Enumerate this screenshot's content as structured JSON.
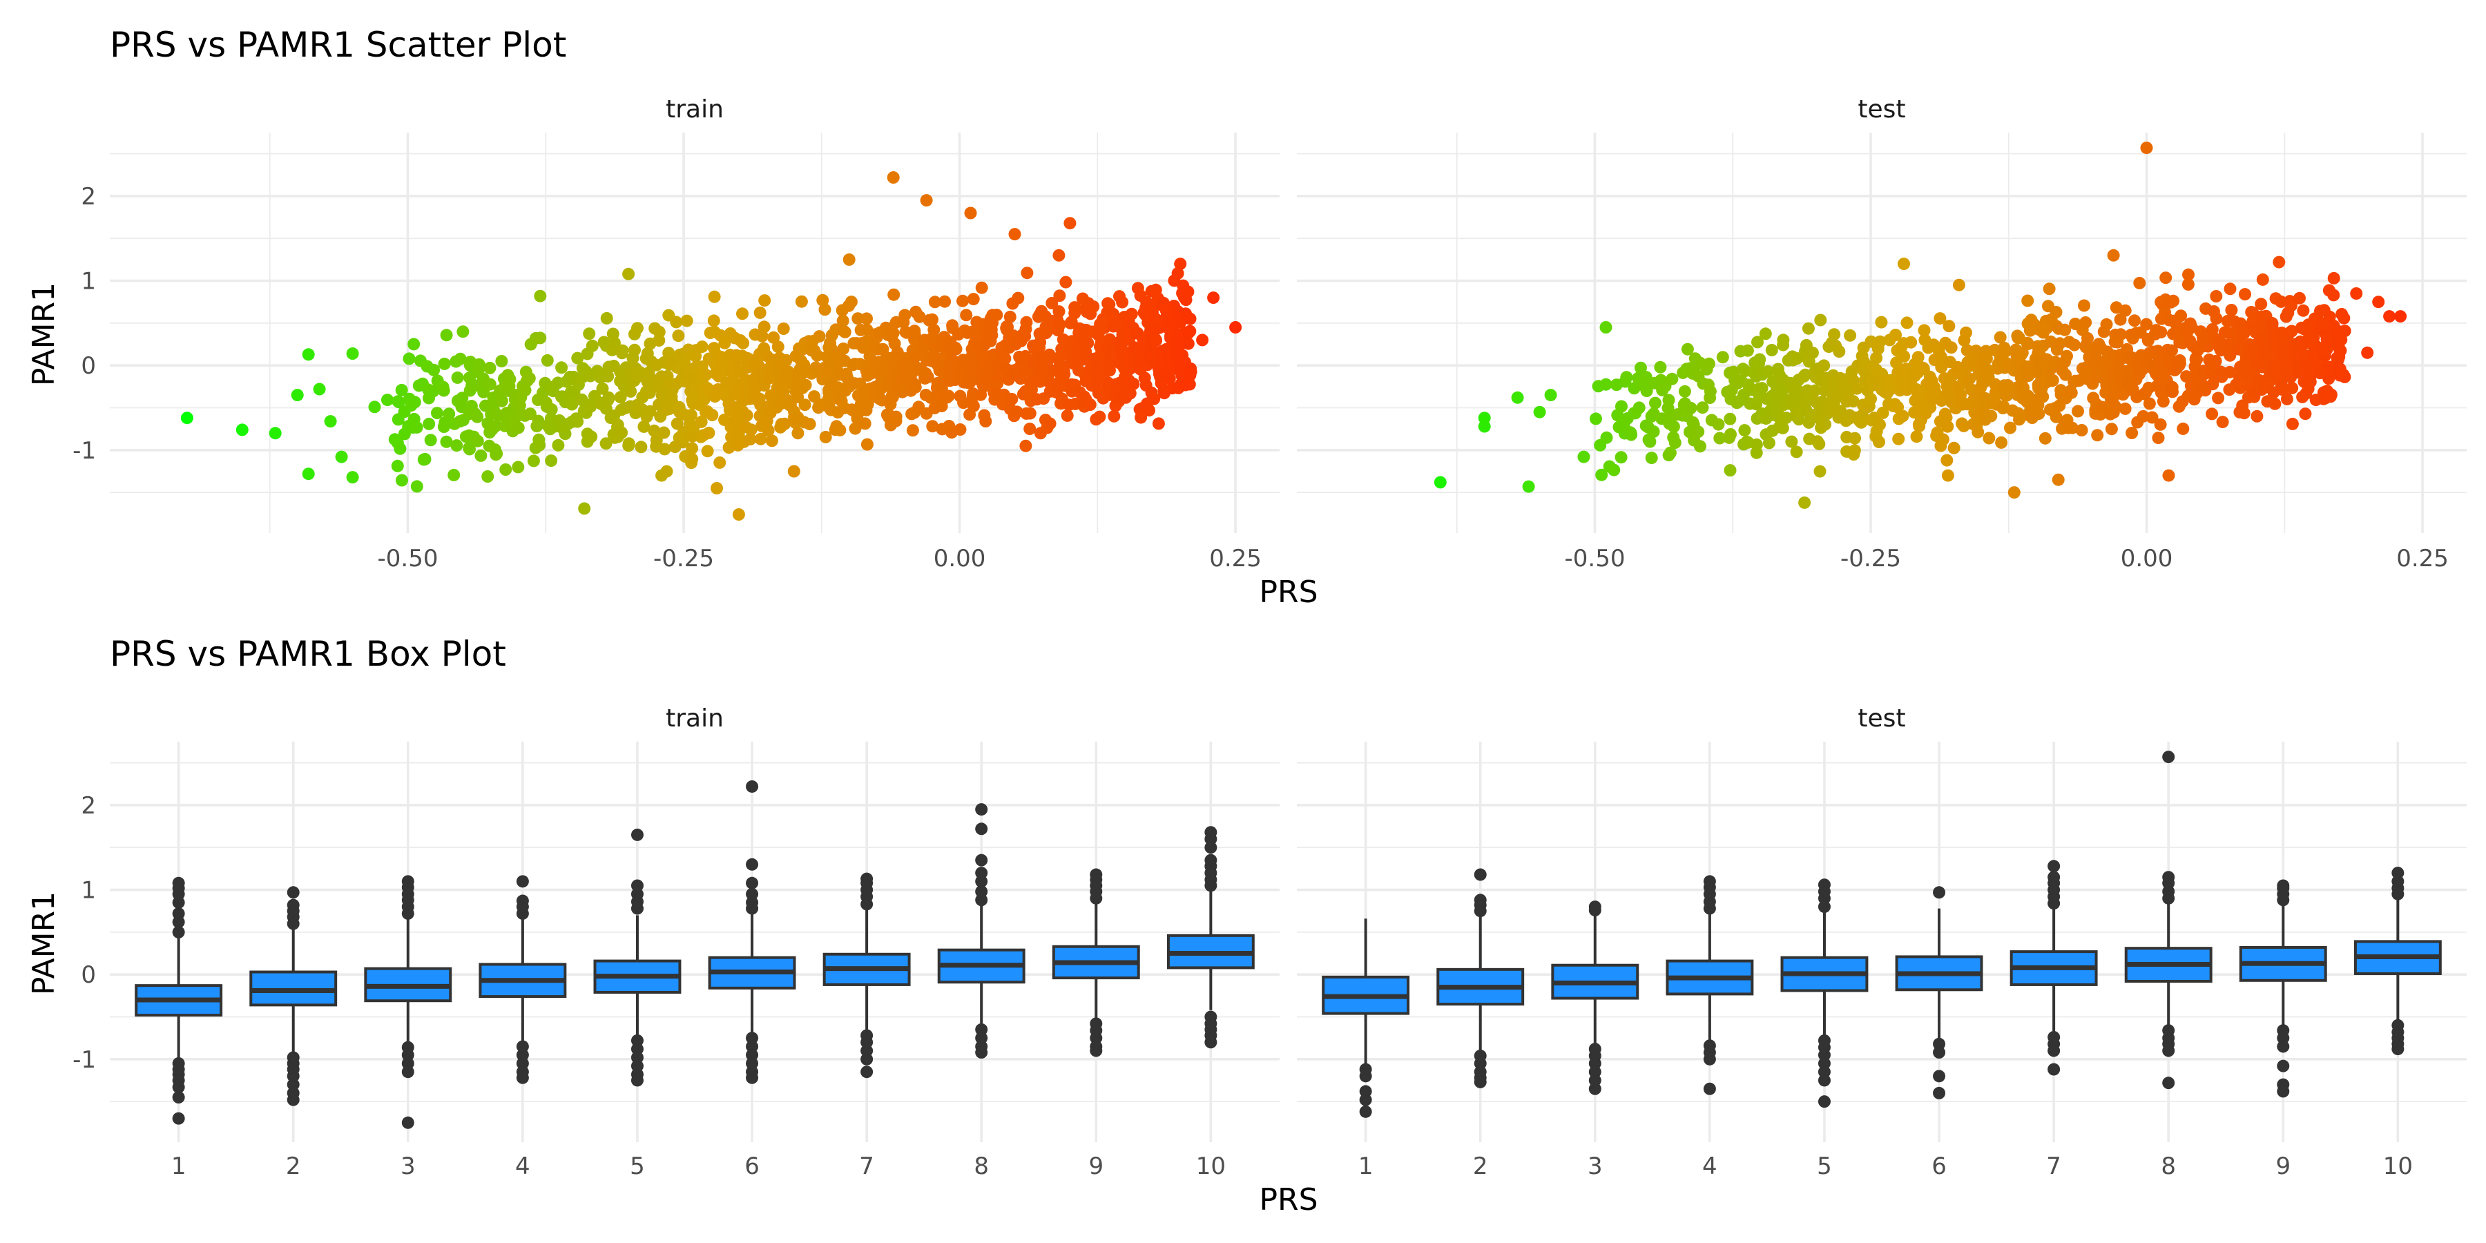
{
  "plots": [
    {
      "title": "PRS vs PAMR1 Scatter Plot",
      "xlabel": "PRS",
      "ylabel": "PAMR1"
    },
    {
      "title": "PRS vs PAMR1 Box Plot",
      "xlabel": "PRS",
      "ylabel": "PAMR1"
    }
  ],
  "colors": {
    "gradient_low": "#00ff00",
    "gradient_mid": "#d6a200",
    "gradient_high": "#ff2a00",
    "box_fill": "#1e90ff",
    "box_line": "#333333",
    "outlier": "#333333",
    "grid": "#ebebeb"
  },
  "chart_data": [
    {
      "type": "scatter",
      "title": "PRS vs PAMR1 Scatter Plot",
      "xlabel": "PRS",
      "ylabel": "PAMR1",
      "facets": [
        "train",
        "test"
      ],
      "xlim": [
        -0.77,
        0.29
      ],
      "ylim": [
        -1.98,
        2.75
      ],
      "xticks": [
        -0.5,
        -0.25,
        0.0,
        0.25
      ],
      "xtick_labels": [
        "-0.50",
        "-0.25",
        "0.00",
        "0.25"
      ],
      "yticks": [
        -1,
        0,
        1,
        2
      ],
      "ytick_labels": [
        "-1",
        "0",
        "1",
        "2"
      ],
      "color_scale": {
        "low": "#00ff00",
        "high": "#ff2a00",
        "domain": [
          -0.7,
          0.25
        ]
      },
      "trend": {
        "slope": 1.2,
        "intercept": 0.02
      },
      "grid": true,
      "legend": "none",
      "series": [
        {
          "name": "train",
          "points": [
            [
              -0.7,
              -0.62
            ],
            [
              -0.65,
              -0.76
            ],
            [
              -0.62,
              -0.8
            ],
            [
              -0.6,
              -0.35
            ],
            [
              -0.59,
              -1.28
            ],
            [
              -0.59,
              0.13
            ],
            [
              -0.58,
              -0.28
            ],
            [
              -0.57,
              -0.66
            ],
            [
              -0.55,
              -1.32
            ],
            [
              -0.55,
              0.14
            ],
            [
              -0.56,
              -1.08
            ],
            [
              -0.53,
              -0.49
            ],
            [
              -0.38,
              0.82
            ],
            [
              -0.3,
              1.08
            ],
            [
              -0.34,
              -1.69
            ],
            [
              -0.2,
              -1.76
            ],
            [
              -0.22,
              -1.45
            ],
            [
              -0.27,
              -1.3
            ],
            [
              -0.1,
              1.25
            ],
            [
              -0.06,
              2.22
            ],
            [
              -0.03,
              1.95
            ],
            [
              0.01,
              1.8
            ],
            [
              0.05,
              1.55
            ],
            [
              0.1,
              1.68
            ],
            [
              0.09,
              1.3
            ],
            [
              0.2,
              1.2
            ],
            [
              0.23,
              0.8
            ],
            [
              0.25,
              0.45
            ],
            [
              0.22,
              0.3
            ],
            [
              0.17,
              -0.45
            ],
            [
              0.14,
              -0.6
            ],
            [
              -0.45,
              0.4
            ],
            [
              -0.4,
              -1.2
            ],
            [
              -0.15,
              -1.25
            ],
            [
              0.06,
              -0.95
            ]
          ],
          "cloud": {
            "x_range": [
              -0.52,
              0.21
            ],
            "n": 1400,
            "spread": 0.36
          }
        },
        {
          "name": "test",
          "points": [
            [
              -0.64,
              -1.38
            ],
            [
              -0.6,
              -0.62
            ],
            [
              -0.6,
              -0.72
            ],
            [
              -0.56,
              -1.43
            ],
            [
              -0.57,
              -0.38
            ],
            [
              -0.55,
              -0.55
            ],
            [
              -0.54,
              -0.35
            ],
            [
              -0.51,
              -1.08
            ],
            [
              -0.31,
              -1.62
            ],
            [
              -0.22,
              1.2
            ],
            [
              -0.17,
              0.95
            ],
            [
              0.0,
              2.57
            ],
            [
              -0.03,
              1.3
            ],
            [
              0.12,
              1.22
            ],
            [
              0.19,
              0.85
            ],
            [
              0.21,
              0.75
            ],
            [
              0.22,
              0.58
            ],
            [
              0.23,
              0.58
            ],
            [
              0.2,
              0.15
            ],
            [
              0.1,
              -0.6
            ],
            [
              0.02,
              -1.3
            ],
            [
              -0.12,
              -1.5
            ],
            [
              -0.08,
              -1.35
            ],
            [
              -0.18,
              -1.3
            ],
            [
              -0.49,
              0.45
            ],
            [
              0.17,
              -0.05
            ],
            [
              -0.45,
              -0.9
            ]
          ],
          "cloud": {
            "x_range": [
              -0.5,
              0.18
            ],
            "n": 1150,
            "spread": 0.35
          }
        }
      ]
    },
    {
      "type": "box",
      "title": "PRS vs PAMR1 Box Plot",
      "xlabel": "PRS",
      "ylabel": "PAMR1",
      "facets": [
        "train",
        "test"
      ],
      "categories": [
        "1",
        "2",
        "3",
        "4",
        "5",
        "6",
        "7",
        "8",
        "9",
        "10"
      ],
      "ylim": [
        -1.98,
        2.75
      ],
      "yticks": [
        -1,
        0,
        1,
        2
      ],
      "ytick_labels": [
        "-1",
        "0",
        "1",
        "2"
      ],
      "grid": true,
      "legend": "none",
      "series": [
        {
          "name": "train",
          "boxes": [
            {
              "whisker_low": -1.0,
              "q1": -0.48,
              "median": -0.3,
              "q3": -0.13,
              "whisker_high": 0.44,
              "outliers": [
                -1.05,
                -1.12,
                -1.18,
                -1.25,
                -1.33,
                -1.45,
                -1.7,
                0.5,
                0.62,
                0.72,
                0.85,
                0.95,
                1.02,
                1.08
              ]
            },
            {
              "whisker_low": -0.92,
              "q1": -0.36,
              "median": -0.19,
              "q3": 0.03,
              "whisker_high": 0.54,
              "outliers": [
                -0.98,
                -1.05,
                -1.12,
                -1.2,
                -1.3,
                -1.4,
                -1.48,
                0.6,
                0.68,
                0.75,
                0.82,
                0.97
              ]
            },
            {
              "whisker_low": -0.8,
              "q1": -0.31,
              "median": -0.14,
              "q3": 0.07,
              "whisker_high": 0.65,
              "outliers": [
                -0.86,
                -0.95,
                -1.05,
                -1.15,
                -1.75,
                0.72,
                0.8,
                0.88,
                0.95,
                1.03,
                1.1
              ]
            },
            {
              "whisker_low": -0.78,
              "q1": -0.26,
              "median": -0.07,
              "q3": 0.12,
              "whisker_high": 0.66,
              "outliers": [
                -0.85,
                -0.95,
                -1.05,
                -1.15,
                -1.22,
                0.72,
                0.8,
                0.87,
                1.1
              ]
            },
            {
              "whisker_low": -0.72,
              "q1": -0.21,
              "median": -0.02,
              "q3": 0.16,
              "whisker_high": 0.7,
              "outliers": [
                -0.78,
                -0.88,
                -0.98,
                -1.08,
                -1.18,
                -1.25,
                0.78,
                0.86,
                0.95,
                1.05,
                1.65
              ]
            },
            {
              "whisker_low": -0.7,
              "q1": -0.16,
              "median": 0.03,
              "q3": 0.2,
              "whisker_high": 0.72,
              "outliers": [
                -0.75,
                -0.85,
                -0.95,
                -1.05,
                -1.15,
                -1.22,
                0.78,
                0.85,
                0.95,
                1.08,
                1.3,
                2.22
              ]
            },
            {
              "whisker_low": -0.65,
              "q1": -0.12,
              "median": 0.07,
              "q3": 0.24,
              "whisker_high": 0.77,
              "outliers": [
                -0.72,
                -0.8,
                -0.9,
                -1.0,
                -1.15,
                0.83,
                0.92,
                1.0,
                1.08,
                1.13
              ]
            },
            {
              "whisker_low": -0.58,
              "q1": -0.09,
              "median": 0.11,
              "q3": 0.29,
              "whisker_high": 0.82,
              "outliers": [
                -0.65,
                -0.75,
                -0.85,
                -0.92,
                0.88,
                0.98,
                1.1,
                1.2,
                1.35,
                1.72,
                1.95
              ]
            },
            {
              "whisker_low": -0.52,
              "q1": -0.04,
              "median": 0.14,
              "q3": 0.33,
              "whisker_high": 0.84,
              "outliers": [
                -0.58,
                -0.66,
                -0.75,
                -0.85,
                -0.9,
                0.9,
                0.98,
                1.05,
                1.12,
                1.18
              ]
            },
            {
              "whisker_low": -0.42,
              "q1": 0.08,
              "median": 0.25,
              "q3": 0.46,
              "whisker_high": 1.0,
              "outliers": [
                -0.5,
                -0.58,
                -0.65,
                -0.72,
                -0.8,
                1.05,
                1.12,
                1.2,
                1.28,
                1.35,
                1.5,
                1.6,
                1.68
              ]
            }
          ]
        },
        {
          "name": "test",
          "boxes": [
            {
              "whisker_low": -1.05,
              "q1": -0.46,
              "median": -0.26,
              "q3": -0.03,
              "whisker_high": 0.66,
              "outliers": [
                -1.12,
                -1.2,
                -1.38,
                -1.48,
                -1.62
              ]
            },
            {
              "whisker_low": -0.9,
              "q1": -0.35,
              "median": -0.15,
              "q3": 0.06,
              "whisker_high": 0.68,
              "outliers": [
                -0.96,
                -1.05,
                -1.15,
                -1.22,
                -1.27,
                0.75,
                0.82,
                0.88,
                1.18
              ]
            },
            {
              "whisker_low": -0.82,
              "q1": -0.28,
              "median": -0.1,
              "q3": 0.11,
              "whisker_high": 0.7,
              "outliers": [
                -0.88,
                -0.96,
                -1.05,
                -1.15,
                -1.25,
                -1.35,
                0.76,
                0.8
              ]
            },
            {
              "whisker_low": -0.78,
              "q1": -0.23,
              "median": -0.04,
              "q3": 0.16,
              "whisker_high": 0.72,
              "outliers": [
                -0.84,
                -0.92,
                -1.0,
                -1.35,
                0.78,
                0.86,
                0.95,
                1.03,
                1.1
              ]
            },
            {
              "whisker_low": -0.72,
              "q1": -0.19,
              "median": 0.01,
              "q3": 0.2,
              "whisker_high": 0.74,
              "outliers": [
                -0.78,
                -0.86,
                -0.95,
                -1.05,
                -1.15,
                -1.25,
                -1.5,
                0.8,
                0.9,
                0.98,
                1.06
              ]
            },
            {
              "whisker_low": -0.75,
              "q1": -0.18,
              "median": 0.01,
              "q3": 0.21,
              "whisker_high": 0.78,
              "outliers": [
                -0.82,
                -0.92,
                -1.2,
                -1.4,
                0.97
              ]
            },
            {
              "whisker_low": -0.68,
              "q1": -0.12,
              "median": 0.08,
              "q3": 0.27,
              "whisker_high": 0.78,
              "outliers": [
                -0.74,
                -0.82,
                -0.9,
                -1.12,
                0.84,
                0.92,
                1.0,
                1.08,
                1.15,
                1.28
              ]
            },
            {
              "whisker_low": -0.6,
              "q1": -0.08,
              "median": 0.12,
              "q3": 0.31,
              "whisker_high": 0.83,
              "outliers": [
                -0.66,
                -0.75,
                -0.82,
                -0.9,
                -1.28,
                0.9,
                0.98,
                1.08,
                1.15,
                2.57
              ]
            },
            {
              "whisker_low": -0.6,
              "q1": -0.07,
              "median": 0.13,
              "q3": 0.32,
              "whisker_high": 0.82,
              "outliers": [
                -0.66,
                -0.75,
                -0.85,
                -1.08,
                -1.3,
                -1.38,
                0.88,
                0.95,
                1.02,
                1.05
              ]
            },
            {
              "whisker_low": -0.55,
              "q1": 0.01,
              "median": 0.21,
              "q3": 0.39,
              "whisker_high": 0.9,
              "outliers": [
                -0.6,
                -0.68,
                -0.75,
                -0.82,
                -0.88,
                0.95,
                1.02,
                1.1,
                1.2
              ]
            }
          ]
        }
      ]
    }
  ]
}
